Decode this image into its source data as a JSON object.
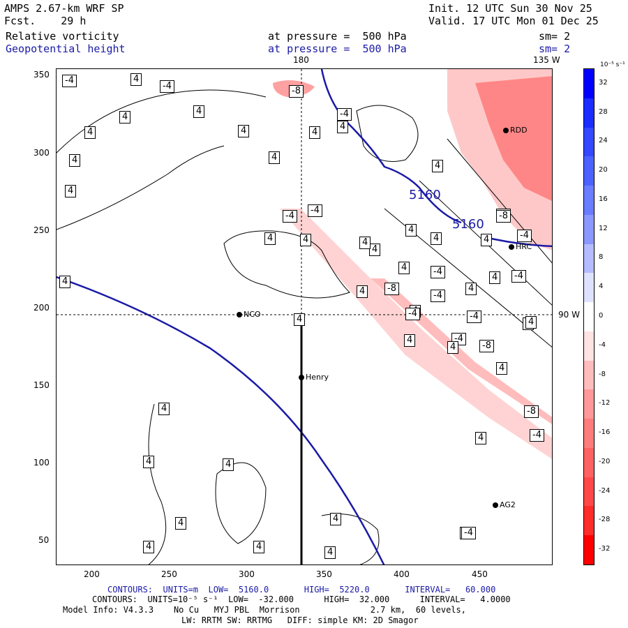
{
  "header": {
    "title": "AMPS 2.67-km WRF SP",
    "fcst": "Fcst.    29 h",
    "init": "Init. 12 UTC Sun 30 Nov 25",
    "valid": "Valid. 17 UTC Mon 01 Dec 25",
    "field1": "Relative vorticity",
    "field1_level": "at pressure =  500 hPa",
    "field1_sm": "sm= 2",
    "field2": "Geopotential height",
    "field2_level": "at pressure =  500 hPa",
    "field2_sm": "sm= 2"
  },
  "map": {
    "lon_label_top": "180",
    "lon_label_topright": "135 W",
    "lon_label_right": "90 W",
    "x_ticks": [
      "200",
      "250",
      "300",
      "350",
      "400",
      "450"
    ],
    "y_ticks": [
      "350",
      "300",
      "250",
      "200",
      "150",
      "100",
      "50"
    ],
    "stations": [
      {
        "name": "NCO"
      },
      {
        "name": "Henry"
      },
      {
        "name": "RDD"
      },
      {
        "name": "HRC"
      },
      {
        "name": "AG2"
      }
    ],
    "height_labels": [
      "5160",
      "5160"
    ],
    "vort_labels": [
      "-4",
      "4",
      "-4",
      "4",
      "4",
      "4",
      "4",
      "4",
      "-8",
      "-4",
      "4",
      "4",
      "4",
      "4",
      "4",
      "4",
      "-4",
      "-4",
      "4",
      "4",
      "4",
      "4",
      "4",
      "4",
      "-8",
      "4",
      "-8",
      "-4",
      "4",
      "4",
      "-4",
      "-4",
      "-4",
      "4",
      "4",
      "-4",
      "-8",
      "4",
      "4",
      "-4",
      "-8",
      "-4",
      "4",
      "4",
      "4",
      "4",
      "4",
      "4",
      "-8",
      "-4",
      "-4",
      "4",
      "4",
      "4",
      "4",
      "4",
      "4",
      "4",
      "4",
      "-4"
    ]
  },
  "colorbar": {
    "units": "10⁻⁵ s⁻¹",
    "ticks": [
      "32",
      "28",
      "24",
      "20",
      "16",
      "12",
      "8",
      "4",
      "0",
      "-4",
      "-8",
      "-12",
      "-16",
      "-20",
      "-24",
      "-28",
      "-32"
    ],
    "colors": [
      "#0000ff",
      "#1a2cff",
      "#3348ff",
      "#4c62ff",
      "#6a7cff",
      "#8a98ff",
      "#b4bcff",
      "#dfe2ff",
      "#ffffff",
      "#ffe2e2",
      "#ffbcbc",
      "#ff9898",
      "#ff7c7c",
      "#ff6262",
      "#ff4848",
      "#ff2c2c",
      "#ff0000"
    ]
  },
  "footer": {
    "line1": "CONTOURS:  UNITS=m  LOW=  5160.0       HIGH=  5220.0       INTERVAL=   60.000",
    "line2": "CONTOURS:  UNITS=10⁻⁵ s⁻¹  LOW=  -32.000      HIGH=  32.000      INTERVAL=   4.0000",
    "line3": "Model Info: V4.3.3    No Cu   MYJ PBL  Morrison              2.7 km,  60 levels,",
    "line4": "LW: RRTM SW: RRTMG   DIFF: simple KM: 2D Smagor"
  }
}
